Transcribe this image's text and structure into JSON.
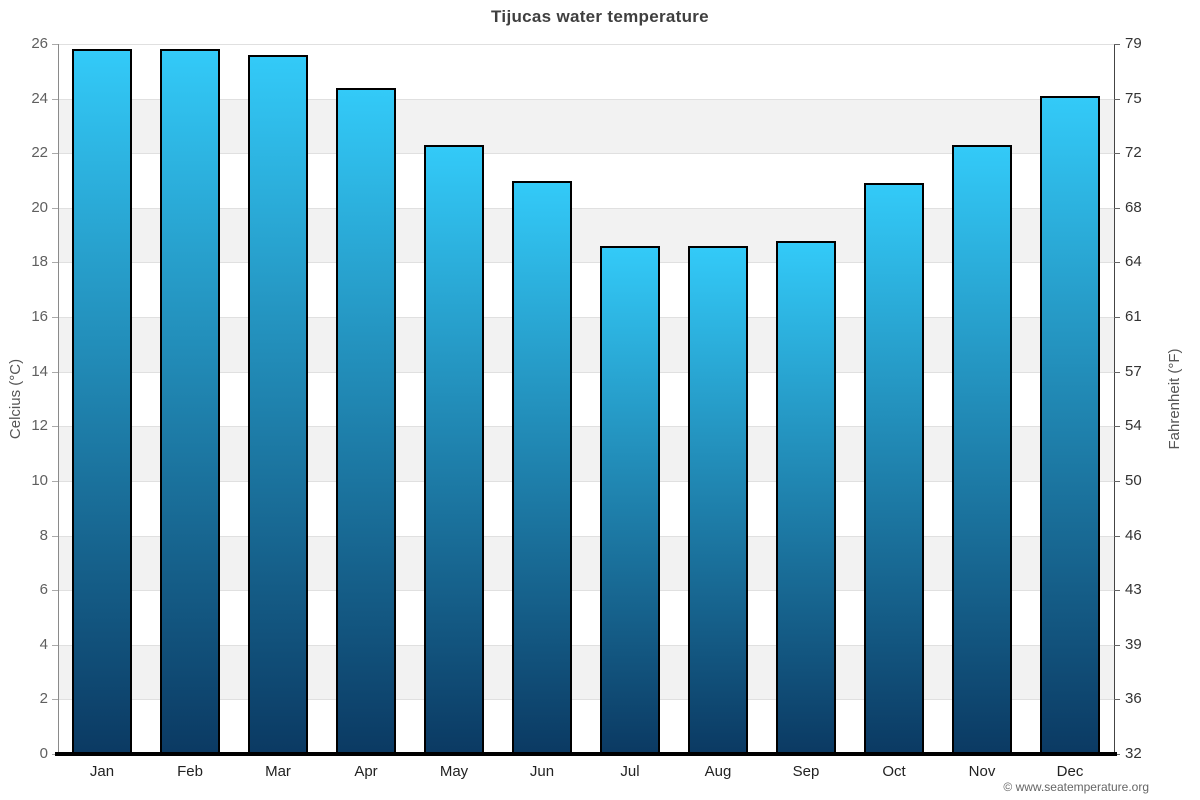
{
  "page": {
    "footer_credit": "© www.seatemperature.org"
  },
  "chart_data": {
    "type": "bar",
    "title": "Tijucas water temperature",
    "categories": [
      "Jan",
      "Feb",
      "Mar",
      "Apr",
      "May",
      "Jun",
      "Jul",
      "Aug",
      "Sep",
      "Oct",
      "Nov",
      "Dec"
    ],
    "values": [
      25.8,
      25.8,
      25.6,
      24.4,
      22.3,
      21.0,
      18.6,
      18.6,
      18.8,
      20.9,
      22.3,
      24.1
    ],
    "xlabel": "",
    "ylabel_left": "Celcius (°C)",
    "ylabel_right": "Fahrenheit (°F)",
    "ylim": [
      0,
      26
    ],
    "yticks_celsius": [
      0,
      2,
      4,
      6,
      8,
      10,
      12,
      14,
      16,
      18,
      20,
      22,
      24,
      26
    ],
    "yticks_fahrenheit": [
      32,
      36,
      39,
      43,
      46,
      50,
      54,
      57,
      61,
      64,
      68,
      72,
      75,
      79
    ],
    "grid": true,
    "legend": "none",
    "colors": {
      "bar_gradient_top": "#33CAF8",
      "bar_gradient_bottom": "#0B3A63",
      "bar_border": "#000000",
      "band_fill": "#F2F2F2",
      "gridline": "#E0E0E0",
      "background": "#FFFFFF"
    }
  }
}
